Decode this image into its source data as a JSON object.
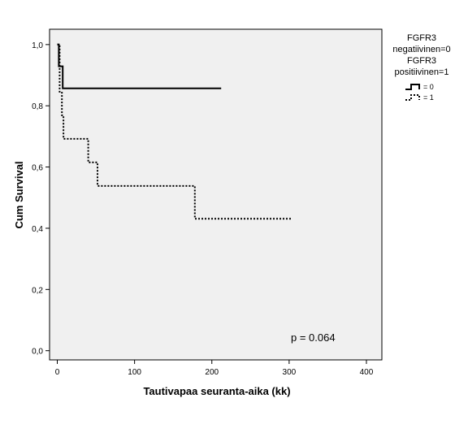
{
  "chart_data": {
    "type": "line",
    "step": true,
    "xlabel": "Tautivapaa seuranta-aika (kk)",
    "ylabel": "Cum Survival",
    "xlim": [
      -10,
      420
    ],
    "ylim": [
      -0.03,
      1.05
    ],
    "x_ticks": [
      0,
      100,
      200,
      300,
      400
    ],
    "y_ticks": [
      0.0,
      0.2,
      0.4,
      0.6,
      0.8,
      1.0
    ],
    "y_tick_labels": [
      "0,0",
      "0,2",
      "0,4",
      "0,6",
      "0,8",
      "1,0"
    ],
    "grid": false,
    "background_color": "#f0f0f0",
    "annotation": "p = 0.064",
    "legend": {
      "position": "top-right",
      "title_lines": [
        "FGFR3",
        "negatiivinen=0",
        "FGFR3",
        "positiivinen=1"
      ],
      "entries": [
        "= 0",
        "= 1"
      ]
    },
    "series": [
      {
        "label": "= 0",
        "line_style": "solid",
        "color": "#000000",
        "points": [
          [
            0,
            1.0
          ],
          [
            2,
            1.0
          ],
          [
            2,
            0.929
          ],
          [
            7,
            0.929
          ],
          [
            7,
            0.857
          ],
          [
            212,
            0.857
          ]
        ]
      },
      {
        "label": "= 1",
        "line_style": "dotted",
        "color": "#000000",
        "points": [
          [
            0,
            1.0
          ],
          [
            3,
            1.0
          ],
          [
            3,
            0.846
          ],
          [
            6,
            0.846
          ],
          [
            6,
            0.769
          ],
          [
            8,
            0.769
          ],
          [
            8,
            0.692
          ],
          [
            40,
            0.692
          ],
          [
            40,
            0.615
          ],
          [
            52,
            0.615
          ],
          [
            52,
            0.538
          ],
          [
            178,
            0.538
          ],
          [
            178,
            0.431
          ],
          [
            303,
            0.431
          ]
        ]
      }
    ]
  }
}
